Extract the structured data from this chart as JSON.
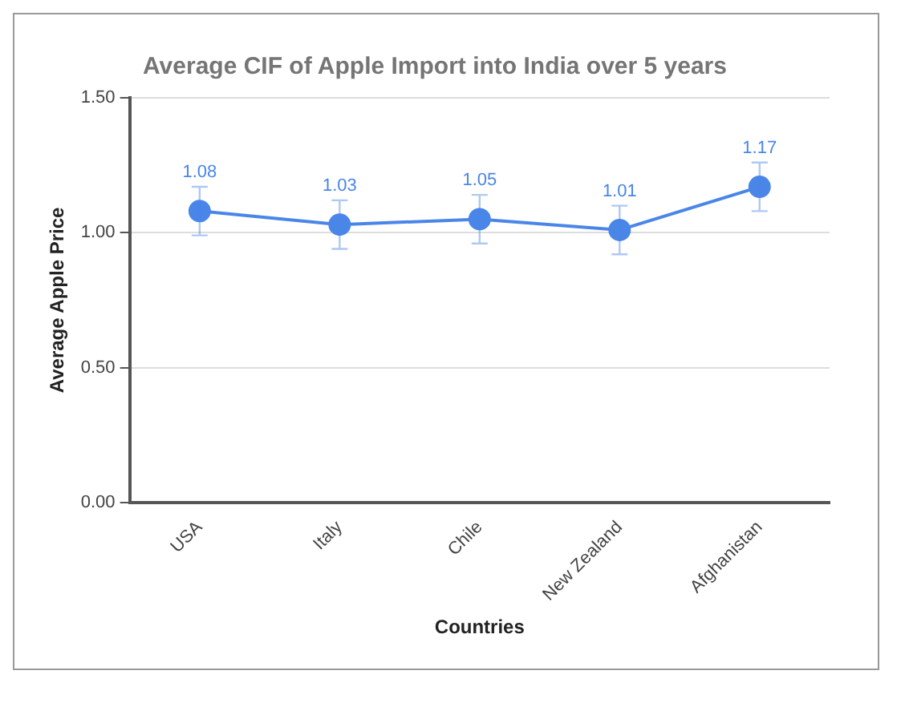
{
  "chart_data": {
    "type": "line",
    "title": "Average CIF of Apple Import into India over 5 years",
    "xlabel": "Countries",
    "ylabel": "Average Apple Price",
    "categories": [
      "USA",
      "Italy",
      "Chile",
      "New Zealand",
      "Afghanistan"
    ],
    "series": [
      {
        "color": "#4a86e8",
        "values": [
          1.08,
          1.03,
          1.05,
          1.01,
          1.17
        ],
        "errors": [
          0.09,
          0.09,
          0.09,
          0.09,
          0.09
        ]
      }
    ],
    "ylim": [
      0,
      1.5
    ],
    "yticks": [
      {
        "value": 0,
        "label": "0.00"
      },
      {
        "value": 0.5,
        "label": "0.50"
      },
      {
        "value": 1,
        "label": "1.00"
      },
      {
        "value": 1.5,
        "label": "1.50"
      }
    ],
    "grid": "y",
    "marker": "circle",
    "line_style": "solid",
    "data_labels": true,
    "legend": false
  }
}
